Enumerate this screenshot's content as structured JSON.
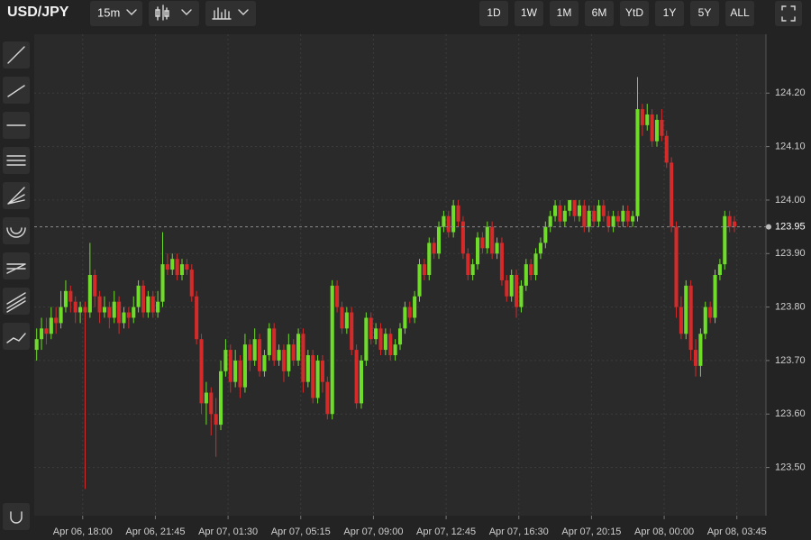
{
  "toolbar": {
    "symbol": "USD/JPY",
    "interval": "15m",
    "ranges": [
      "1D",
      "1W",
      "1M",
      "6M",
      "YtD",
      "1Y",
      "5Y",
      "ALL"
    ]
  },
  "chart_data": {
    "type": "candlestick",
    "up_color": "#6fdc2a",
    "down_color": "#d42a2a",
    "grid": true,
    "xlim": [
      0,
      151
    ],
    "xticks": [
      {
        "value": 10,
        "label": "Apr 06, 18:00"
      },
      {
        "value": 25,
        "label": "Apr 06, 21:45"
      },
      {
        "value": 40,
        "label": "Apr 07, 01:30"
      },
      {
        "value": 55,
        "label": "Apr 07, 05:15"
      },
      {
        "value": 70,
        "label": "Apr 07, 09:00"
      },
      {
        "value": 85,
        "label": "Apr 07, 12:45"
      },
      {
        "value": 100,
        "label": "Apr 07, 16:30"
      },
      {
        "value": 115,
        "label": "Apr 07, 20:15"
      },
      {
        "value": 130,
        "label": "Apr 08, 00:00"
      },
      {
        "value": 145,
        "label": "Apr 08, 03:45"
      }
    ],
    "ylim": [
      123.41,
      124.31
    ],
    "yticks": [
      {
        "value": 123.5,
        "label": "123.50"
      },
      {
        "value": 123.6,
        "label": "123.60"
      },
      {
        "value": 123.7,
        "label": "123.70"
      },
      {
        "value": 123.8,
        "label": "123.80"
      },
      {
        "value": 123.9,
        "label": "123.90"
      },
      {
        "value": 124.0,
        "label": "124.00"
      },
      {
        "value": 124.1,
        "label": "124.10"
      },
      {
        "value": 124.2,
        "label": "124.20"
      }
    ],
    "last_price": 123.95,
    "last_price_label": "123.95",
    "ohlc": [
      [
        123.72,
        123.76,
        123.7,
        123.74
      ],
      [
        123.74,
        123.78,
        123.72,
        123.76
      ],
      [
        123.76,
        123.78,
        123.73,
        123.75
      ],
      [
        123.75,
        123.8,
        123.74,
        123.78
      ],
      [
        123.78,
        123.8,
        123.75,
        123.77
      ],
      [
        123.77,
        123.83,
        123.76,
        123.8
      ],
      [
        123.8,
        123.85,
        123.79,
        123.83
      ],
      [
        123.83,
        123.84,
        123.79,
        123.81
      ],
      [
        123.81,
        123.82,
        123.77,
        123.79
      ],
      [
        123.79,
        123.81,
        123.77,
        123.8
      ],
      [
        123.8,
        123.81,
        123.46,
        123.79
      ],
      [
        123.79,
        123.92,
        123.78,
        123.86
      ],
      [
        123.86,
        123.87,
        123.8,
        123.82
      ],
      [
        123.82,
        123.83,
        123.77,
        123.79
      ],
      [
        123.79,
        123.82,
        123.78,
        123.8
      ],
      [
        123.8,
        123.81,
        123.76,
        123.78
      ],
      [
        123.78,
        123.83,
        123.77,
        123.81
      ],
      [
        123.81,
        123.82,
        123.75,
        123.77
      ],
      [
        123.77,
        123.8,
        123.76,
        123.79
      ],
      [
        123.79,
        123.8,
        123.76,
        123.78
      ],
      [
        123.78,
        123.82,
        123.77,
        123.8
      ],
      [
        123.8,
        123.85,
        123.79,
        123.84
      ],
      [
        123.84,
        123.85,
        123.78,
        123.79
      ],
      [
        123.79,
        123.83,
        123.78,
        123.82
      ],
      [
        123.82,
        123.83,
        123.78,
        123.79
      ],
      [
        123.79,
        123.83,
        123.78,
        123.81
      ],
      [
        123.81,
        123.94,
        123.8,
        123.88
      ],
      [
        123.88,
        123.9,
        123.86,
        123.87
      ],
      [
        123.87,
        123.9,
        123.86,
        123.89
      ],
      [
        123.89,
        123.9,
        123.85,
        123.86
      ],
      [
        123.86,
        123.89,
        123.85,
        123.88
      ],
      [
        123.88,
        123.89,
        123.86,
        123.87
      ],
      [
        123.87,
        123.88,
        123.81,
        123.82
      ],
      [
        123.82,
        123.83,
        123.73,
        123.74
      ],
      [
        123.74,
        123.75,
        123.6,
        123.62
      ],
      [
        123.62,
        123.66,
        123.58,
        123.64
      ],
      [
        123.64,
        123.65,
        123.56,
        123.6
      ],
      [
        123.6,
        123.63,
        123.52,
        123.58
      ],
      [
        123.58,
        123.7,
        123.57,
        123.68
      ],
      [
        123.68,
        123.74,
        123.67,
        123.72
      ],
      [
        123.72,
        123.73,
        123.64,
        123.66
      ],
      [
        123.66,
        123.72,
        123.65,
        123.7
      ],
      [
        123.7,
        123.71,
        123.63,
        123.65
      ],
      [
        123.65,
        123.75,
        123.64,
        123.73
      ],
      [
        123.73,
        123.74,
        123.68,
        123.7
      ],
      [
        123.7,
        123.76,
        123.69,
        123.74
      ],
      [
        123.74,
        123.75,
        123.67,
        123.68
      ],
      [
        123.68,
        123.72,
        123.67,
        123.71
      ],
      [
        123.71,
        123.77,
        123.7,
        123.76
      ],
      [
        123.76,
        123.77,
        123.69,
        123.7
      ],
      [
        123.7,
        123.73,
        123.69,
        123.72
      ],
      [
        123.72,
        123.73,
        123.66,
        123.68
      ],
      [
        123.68,
        123.75,
        123.67,
        123.73
      ],
      [
        123.73,
        123.74,
        123.69,
        123.7
      ],
      [
        123.7,
        123.76,
        123.69,
        123.75
      ],
      [
        123.75,
        123.76,
        123.64,
        123.66
      ],
      [
        123.66,
        123.72,
        123.65,
        123.71
      ],
      [
        123.71,
        123.72,
        123.62,
        123.63
      ],
      [
        123.63,
        123.71,
        123.62,
        123.7
      ],
      [
        123.7,
        123.71,
        123.64,
        123.66
      ],
      [
        123.66,
        123.67,
        123.59,
        123.6
      ],
      [
        123.6,
        123.85,
        123.59,
        123.84
      ],
      [
        123.84,
        123.85,
        123.79,
        123.8
      ],
      [
        123.8,
        123.81,
        123.75,
        123.76
      ],
      [
        123.76,
        123.8,
        123.75,
        123.79
      ],
      [
        123.79,
        123.8,
        123.71,
        123.72
      ],
      [
        123.72,
        123.73,
        123.61,
        123.62
      ],
      [
        123.62,
        123.71,
        123.61,
        123.7
      ],
      [
        123.7,
        123.79,
        123.69,
        123.78
      ],
      [
        123.78,
        123.79,
        123.73,
        123.74
      ],
      [
        123.74,
        123.77,
        123.73,
        123.76
      ],
      [
        123.76,
        123.77,
        123.71,
        123.72
      ],
      [
        123.72,
        123.76,
        123.71,
        123.75
      ],
      [
        123.75,
        123.76,
        123.7,
        123.71
      ],
      [
        123.71,
        123.74,
        123.7,
        123.73
      ],
      [
        123.73,
        123.77,
        123.72,
        123.76
      ],
      [
        123.76,
        123.81,
        123.75,
        123.8
      ],
      [
        123.8,
        123.81,
        123.77,
        123.78
      ],
      [
        123.78,
        123.83,
        123.77,
        123.82
      ],
      [
        123.82,
        123.89,
        123.81,
        123.88
      ],
      [
        123.88,
        123.89,
        123.85,
        123.86
      ],
      [
        123.86,
        123.93,
        123.85,
        123.92
      ],
      [
        123.92,
        123.93,
        123.89,
        123.9
      ],
      [
        123.9,
        123.96,
        123.89,
        123.95
      ],
      [
        123.95,
        123.98,
        123.94,
        123.97
      ],
      [
        123.97,
        123.98,
        123.93,
        123.94
      ],
      [
        123.94,
        124.0,
        123.93,
        123.99
      ],
      [
        123.99,
        124.0,
        123.95,
        123.96
      ],
      [
        123.96,
        123.97,
        123.89,
        123.9
      ],
      [
        123.9,
        123.91,
        123.85,
        123.86
      ],
      [
        123.86,
        123.89,
        123.85,
        123.88
      ],
      [
        123.88,
        123.94,
        123.87,
        123.93
      ],
      [
        123.93,
        123.94,
        123.9,
        123.91
      ],
      [
        123.91,
        123.96,
        123.9,
        123.95
      ],
      [
        123.95,
        123.96,
        123.89,
        123.9
      ],
      [
        123.9,
        123.93,
        123.89,
        123.92
      ],
      [
        123.92,
        123.93,
        123.84,
        123.85
      ],
      [
        123.85,
        123.86,
        123.81,
        123.82
      ],
      [
        123.82,
        123.87,
        123.81,
        123.86
      ],
      [
        123.86,
        123.87,
        123.78,
        123.8
      ],
      [
        123.8,
        123.85,
        123.79,
        123.84
      ],
      [
        123.84,
        123.89,
        123.83,
        123.88
      ],
      [
        123.88,
        123.89,
        123.85,
        123.86
      ],
      [
        123.86,
        123.91,
        123.85,
        123.9
      ],
      [
        123.9,
        123.93,
        123.89,
        123.92
      ],
      [
        123.92,
        123.96,
        123.91,
        123.95
      ],
      [
        123.95,
        123.98,
        123.94,
        123.97
      ],
      [
        123.97,
        124.0,
        123.96,
        123.99
      ],
      [
        123.99,
        124.0,
        123.95,
        123.96
      ],
      [
        123.96,
        123.99,
        123.95,
        123.98
      ],
      [
        123.98,
        124.0,
        123.97,
        124.0
      ],
      [
        124.0,
        124.0,
        123.96,
        123.97
      ],
      [
        123.97,
        124.0,
        123.96,
        123.99
      ],
      [
        123.99,
        124.0,
        123.94,
        123.95
      ],
      [
        123.95,
        123.99,
        123.94,
        123.98
      ],
      [
        123.98,
        123.99,
        123.95,
        123.96
      ],
      [
        123.96,
        124.0,
        123.95,
        123.99
      ],
      [
        123.99,
        124.0,
        123.96,
        123.97
      ],
      [
        123.97,
        123.98,
        123.94,
        123.95
      ],
      [
        123.95,
        123.98,
        123.94,
        123.97
      ],
      [
        123.97,
        123.98,
        123.95,
        123.96
      ],
      [
        123.96,
        123.99,
        123.95,
        123.98
      ],
      [
        123.98,
        123.99,
        123.95,
        123.96
      ],
      [
        123.96,
        123.98,
        123.95,
        123.97
      ],
      [
        123.97,
        124.23,
        123.96,
        124.17
      ],
      [
        124.17,
        124.18,
        124.12,
        124.14
      ],
      [
        124.14,
        124.18,
        124.13,
        124.16
      ],
      [
        124.16,
        124.17,
        124.1,
        124.11
      ],
      [
        124.11,
        124.16,
        124.1,
        124.15
      ],
      [
        124.15,
        124.17,
        124.11,
        124.12
      ],
      [
        124.12,
        124.13,
        124.06,
        124.07
      ],
      [
        124.07,
        124.08,
        123.94,
        123.95
      ],
      [
        123.95,
        123.96,
        123.78,
        123.8
      ],
      [
        123.8,
        123.82,
        123.74,
        123.75
      ],
      [
        123.75,
        123.85,
        123.74,
        123.84
      ],
      [
        123.84,
        123.85,
        123.7,
        123.72
      ],
      [
        123.72,
        123.74,
        123.67,
        123.69
      ],
      [
        123.69,
        123.76,
        123.67,
        123.75
      ],
      [
        123.75,
        123.81,
        123.74,
        123.8
      ],
      [
        123.8,
        123.81,
        123.77,
        123.78
      ],
      [
        123.78,
        123.87,
        123.77,
        123.86
      ],
      [
        123.86,
        123.89,
        123.85,
        123.88
      ],
      [
        123.88,
        123.98,
        123.87,
        123.97
      ],
      [
        123.97,
        123.98,
        123.94,
        123.95
      ],
      [
        123.96,
        123.97,
        123.94,
        123.95
      ]
    ]
  }
}
